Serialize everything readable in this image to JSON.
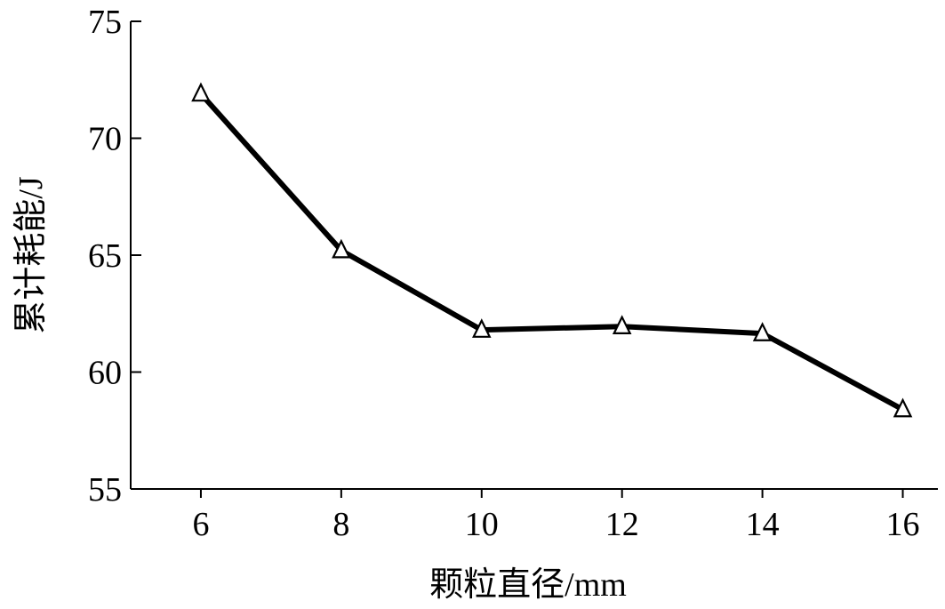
{
  "chart_data": {
    "type": "line",
    "xlabel": "颗粒直径/mm",
    "ylabel": "累计耗能/J",
    "x": [
      6,
      8,
      10,
      12,
      14,
      16
    ],
    "series": [
      {
        "values": [
          71.9,
          65.2,
          61.8,
          61.95,
          61.65,
          58.4
        ],
        "marker": "triangle-open",
        "color": "#000000"
      }
    ],
    "x_ticks": [
      "6",
      "8",
      "10",
      "12",
      "14",
      "16"
    ],
    "y_ticks": [
      "55",
      "60",
      "65",
      "70",
      "75"
    ],
    "xlim": [
      5,
      16.5
    ],
    "ylim": [
      55,
      75
    ],
    "grid": false
  }
}
